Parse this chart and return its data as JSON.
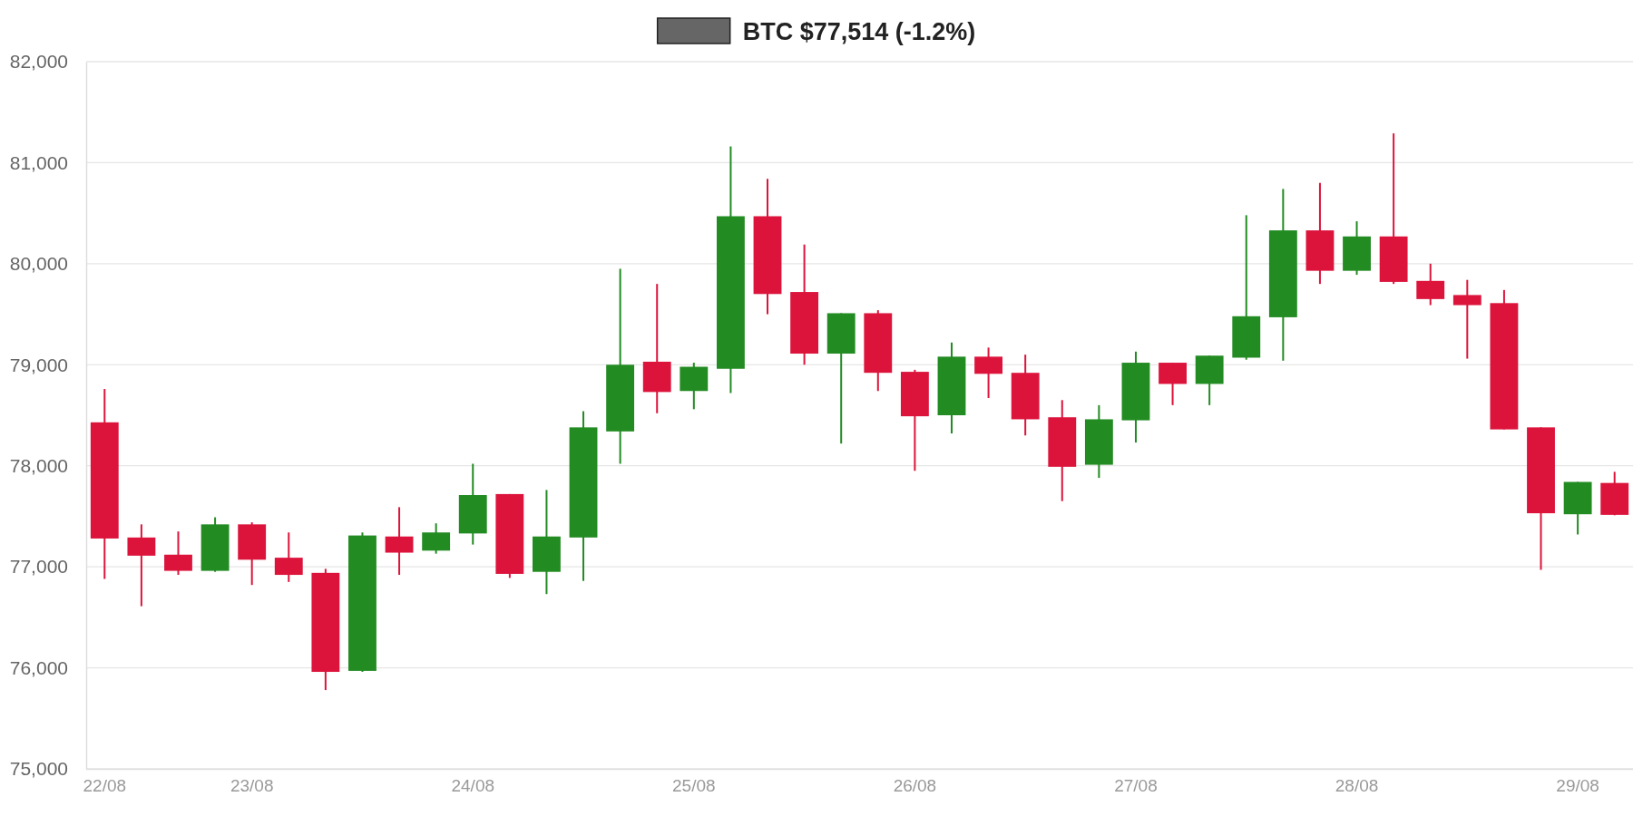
{
  "chart_data": {
    "type": "candlestick",
    "categories": [
      "22/08",
      null,
      null,
      null,
      "23/08",
      null,
      null,
      null,
      null,
      null,
      "24/08",
      null,
      null,
      null,
      null,
      null,
      "25/08",
      null,
      null,
      null,
      null,
      null,
      "26/08",
      null,
      null,
      null,
      null,
      null,
      "27/08",
      null,
      null,
      null,
      null,
      null,
      "28/08",
      null,
      null,
      null,
      null,
      null,
      "29/08",
      null
    ],
    "series": [
      {
        "name": "BTC $77,514 (-1.2%)",
        "color": "#666666",
        "ohlc": [
          [
            78430,
            78760,
            76880,
            77280
          ],
          [
            77290,
            77420,
            76610,
            77110
          ],
          [
            77120,
            77350,
            76920,
            76960
          ],
          [
            76960,
            77490,
            76950,
            77420
          ],
          [
            77420,
            77440,
            76820,
            77070
          ],
          [
            77090,
            77340,
            76850,
            76920
          ],
          [
            76940,
            76980,
            75780,
            75960
          ],
          [
            75970,
            77340,
            75960,
            77310
          ],
          [
            77300,
            77590,
            76920,
            77140
          ],
          [
            77160,
            77430,
            77130,
            77340
          ],
          [
            77330,
            78020,
            77220,
            77710
          ],
          [
            77720,
            77720,
            76890,
            76930
          ],
          [
            76950,
            77760,
            76730,
            77300
          ],
          [
            77290,
            78540,
            76860,
            78380
          ],
          [
            78340,
            79950,
            78020,
            79000
          ],
          [
            79030,
            79800,
            78520,
            78730
          ],
          [
            78740,
            79020,
            78560,
            78980
          ],
          [
            78960,
            81160,
            78720,
            80470
          ],
          [
            80470,
            80840,
            79500,
            79700
          ],
          [
            79720,
            80190,
            79000,
            79110
          ],
          [
            79110,
            79510,
            78220,
            79510
          ],
          [
            79510,
            79540,
            78740,
            78920
          ],
          [
            78930,
            78950,
            77950,
            78490
          ],
          [
            78500,
            79220,
            78320,
            79080
          ],
          [
            79080,
            79170,
            78670,
            78910
          ],
          [
            78920,
            79100,
            78300,
            78460
          ],
          [
            78480,
            78650,
            77650,
            77990
          ],
          [
            78010,
            78600,
            77880,
            78460
          ],
          [
            78450,
            79130,
            78230,
            79020
          ],
          [
            79020,
            79020,
            78600,
            78810
          ],
          [
            78810,
            79090,
            78600,
            79090
          ],
          [
            79070,
            80480,
            79050,
            79480
          ],
          [
            79470,
            80740,
            79040,
            80330
          ],
          [
            80330,
            80800,
            79800,
            79930
          ],
          [
            79930,
            80420,
            79890,
            80270
          ],
          [
            80270,
            81290,
            79800,
            79820
          ],
          [
            79830,
            80000,
            79590,
            79650
          ],
          [
            79690,
            79840,
            79060,
            79590
          ],
          [
            79610,
            79740,
            78360,
            78360
          ],
          [
            78380,
            78380,
            76970,
            77530
          ],
          [
            77520,
            77840,
            77320,
            77840
          ],
          [
            77830,
            77940,
            77510,
            77514
          ]
        ],
        "colors": [
          "#dc143c",
          "#dc143c",
          "#dc143c",
          "#228b22",
          "#dc143c",
          "#dc143c",
          "#dc143c",
          "#228b22",
          "#dc143c",
          "#228b22",
          "#228b22",
          "#dc143c",
          "#228b22",
          "#228b22",
          "#228b22",
          "#dc143c",
          "#228b22",
          "#228b22",
          "#dc143c",
          "#dc143c",
          "#228b22",
          "#dc143c",
          "#dc143c",
          "#228b22",
          "#dc143c",
          "#dc143c",
          "#dc143c",
          "#228b22",
          "#228b22",
          "#dc143c",
          "#228b22",
          "#228b22",
          "#228b22",
          "#dc143c",
          "#228b22",
          "#dc143c",
          "#dc143c",
          "#dc143c",
          "#dc143c",
          "#dc143c",
          "#228b22",
          "#dc143c"
        ]
      }
    ],
    "ylim": [
      75000,
      82000
    ],
    "yticks": [
      {
        "value": 75000,
        "label": "75,000"
      },
      {
        "value": 76000,
        "label": "76,000"
      },
      {
        "value": 77000,
        "label": "77,000"
      },
      {
        "value": 78000,
        "label": "78,000"
      },
      {
        "value": 79000,
        "label": "79,000"
      },
      {
        "value": 80000,
        "label": "80,000"
      },
      {
        "value": 81000,
        "label": "81,000"
      },
      {
        "value": 82000,
        "label": "82,000"
      }
    ],
    "grid": "y",
    "legend": "top"
  }
}
